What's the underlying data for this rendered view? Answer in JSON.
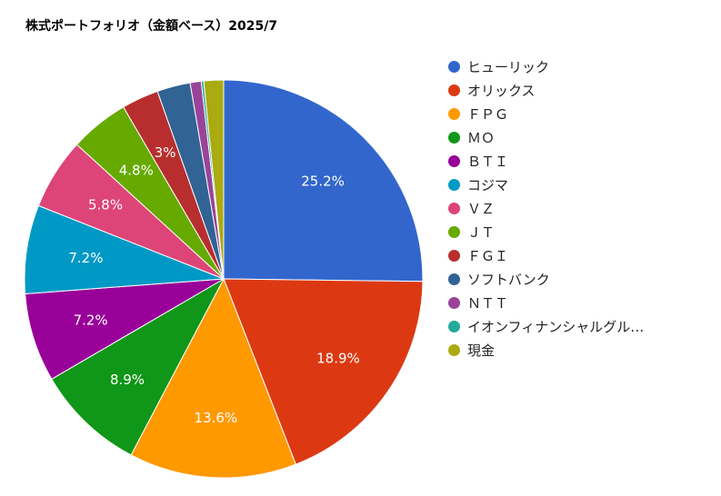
{
  "chart_data": {
    "type": "pie",
    "title": "株式ポートフォリオ（金額ベース）2025/7",
    "slices": [
      {
        "label": "ヒューリック",
        "value": 25.2,
        "display": "25.2%",
        "color": "#3366cc"
      },
      {
        "label": "オリックス",
        "value": 18.9,
        "display": "18.9%",
        "color": "#dc3912"
      },
      {
        "label": "ＦＰＧ",
        "value": 13.6,
        "display": "13.6%",
        "color": "#ff9900"
      },
      {
        "label": "ＭＯ",
        "value": 8.9,
        "display": "8.9%",
        "color": "#109618"
      },
      {
        "label": "ＢＴＩ",
        "value": 7.2,
        "display": "7.2%",
        "color": "#990099"
      },
      {
        "label": "コジマ",
        "value": 7.2,
        "display": "7.2%",
        "color": "#0099c6"
      },
      {
        "label": "ＶＺ",
        "value": 5.8,
        "display": "5.8%",
        "color": "#dd4477"
      },
      {
        "label": "ＪＴ",
        "value": 4.8,
        "display": "4.8%",
        "color": "#66aa00"
      },
      {
        "label": "ＦＧＩ",
        "value": 3.0,
        "display": "3%",
        "color": "#b82e2e"
      },
      {
        "label": "ソフトバンク",
        "value": 2.7,
        "display": "",
        "color": "#316395"
      },
      {
        "label": "ＮＴＴ",
        "value": 0.9,
        "display": "",
        "color": "#994499"
      },
      {
        "label": "イオンフィナンシャルグル…",
        "value": 0.2,
        "display": "",
        "color": "#22aa99"
      },
      {
        "label": "現金",
        "value": 1.6,
        "display": "",
        "color": "#aaaa11"
      }
    ],
    "legend_position": "right"
  }
}
